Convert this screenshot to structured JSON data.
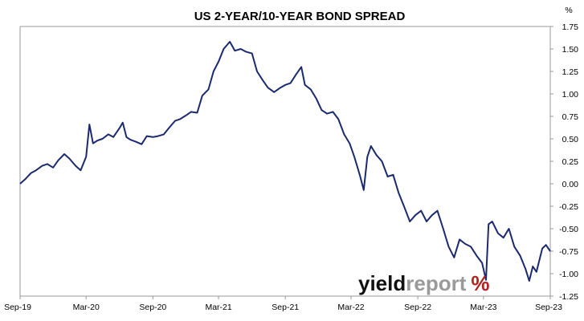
{
  "chart_data": {
    "type": "line",
    "title": "US 2-YEAR/10-YEAR BOND SPREAD",
    "ylabel": "%",
    "ylim": [
      -1.25,
      1.75
    ],
    "y_ticks": [
      "1.75",
      "1.50",
      "1.25",
      "1.00",
      "0.75",
      "0.50",
      "0.25",
      "0.00",
      "-0.25",
      "-0.50",
      "-0.75",
      "-1.00",
      "-1.25"
    ],
    "x_ticks": [
      {
        "label": "Sep-19",
        "date": "2019-09-01"
      },
      {
        "label": "Mar-20",
        "date": "2020-03-01"
      },
      {
        "label": "Sep-20",
        "date": "2020-09-01"
      },
      {
        "label": "Mar-21",
        "date": "2021-03-01"
      },
      {
        "label": "Sep-21",
        "date": "2021-09-01"
      },
      {
        "label": "Mar-22",
        "date": "2022-03-01"
      },
      {
        "label": "Sep-22",
        "date": "2022-09-01"
      },
      {
        "label": "Mar-23",
        "date": "2023-03-01"
      },
      {
        "label": "Sep-23",
        "date": "2023-09-01"
      }
    ],
    "xlim": [
      "2019-09-01",
      "2023-09-01"
    ],
    "grid": false,
    "series": [
      {
        "line_color": "#1a2a6c",
        "points": [
          [
            "2019-09-01",
            0.0
          ],
          [
            "2019-09-15",
            0.05
          ],
          [
            "2019-10-01",
            0.12
          ],
          [
            "2019-10-15",
            0.15
          ],
          [
            "2019-11-01",
            0.2
          ],
          [
            "2019-11-15",
            0.22
          ],
          [
            "2019-12-01",
            0.18
          ],
          [
            "2019-12-15",
            0.26
          ],
          [
            "2020-01-01",
            0.33
          ],
          [
            "2020-01-15",
            0.28
          ],
          [
            "2020-02-01",
            0.2
          ],
          [
            "2020-02-15",
            0.15
          ],
          [
            "2020-03-01",
            0.3
          ],
          [
            "2020-03-10",
            0.66
          ],
          [
            "2020-03-20",
            0.45
          ],
          [
            "2020-04-01",
            0.48
          ],
          [
            "2020-04-15",
            0.5
          ],
          [
            "2020-05-01",
            0.55
          ],
          [
            "2020-05-15",
            0.52
          ],
          [
            "2020-06-01",
            0.62
          ],
          [
            "2020-06-10",
            0.68
          ],
          [
            "2020-06-20",
            0.52
          ],
          [
            "2020-07-01",
            0.49
          ],
          [
            "2020-07-15",
            0.47
          ],
          [
            "2020-08-01",
            0.44
          ],
          [
            "2020-08-15",
            0.53
          ],
          [
            "2020-09-01",
            0.52
          ],
          [
            "2020-09-15",
            0.53
          ],
          [
            "2020-10-01",
            0.55
          ],
          [
            "2020-10-15",
            0.62
          ],
          [
            "2020-11-01",
            0.7
          ],
          [
            "2020-11-15",
            0.72
          ],
          [
            "2020-12-01",
            0.76
          ],
          [
            "2020-12-15",
            0.8
          ],
          [
            "2021-01-01",
            0.79
          ],
          [
            "2021-01-15",
            0.98
          ],
          [
            "2021-02-01",
            1.05
          ],
          [
            "2021-02-15",
            1.25
          ],
          [
            "2021-03-01",
            1.36
          ],
          [
            "2021-03-15",
            1.5
          ],
          [
            "2021-04-01",
            1.58
          ],
          [
            "2021-04-15",
            1.48
          ],
          [
            "2021-05-01",
            1.5
          ],
          [
            "2021-05-15",
            1.47
          ],
          [
            "2021-06-01",
            1.45
          ],
          [
            "2021-06-15",
            1.25
          ],
          [
            "2021-07-01",
            1.15
          ],
          [
            "2021-07-15",
            1.07
          ],
          [
            "2021-08-01",
            1.02
          ],
          [
            "2021-08-15",
            1.06
          ],
          [
            "2021-09-01",
            1.1
          ],
          [
            "2021-09-15",
            1.12
          ],
          [
            "2021-10-01",
            1.22
          ],
          [
            "2021-10-15",
            1.3
          ],
          [
            "2021-10-25",
            1.1
          ],
          [
            "2021-11-10",
            1.05
          ],
          [
            "2021-11-25",
            0.95
          ],
          [
            "2021-12-10",
            0.82
          ],
          [
            "2021-12-25",
            0.78
          ],
          [
            "2022-01-10",
            0.8
          ],
          [
            "2022-01-25",
            0.72
          ],
          [
            "2022-02-10",
            0.55
          ],
          [
            "2022-02-25",
            0.45
          ],
          [
            "2022-03-10",
            0.3
          ],
          [
            "2022-03-25",
            0.1
          ],
          [
            "2022-04-05",
            -0.07
          ],
          [
            "2022-04-15",
            0.3
          ],
          [
            "2022-04-25",
            0.42
          ],
          [
            "2022-05-10",
            0.32
          ],
          [
            "2022-05-25",
            0.25
          ],
          [
            "2022-06-10",
            0.08
          ],
          [
            "2022-06-25",
            0.1
          ],
          [
            "2022-07-10",
            -0.1
          ],
          [
            "2022-07-25",
            -0.25
          ],
          [
            "2022-08-10",
            -0.42
          ],
          [
            "2022-08-25",
            -0.35
          ],
          [
            "2022-09-10",
            -0.3
          ],
          [
            "2022-09-25",
            -0.42
          ],
          [
            "2022-10-10",
            -0.35
          ],
          [
            "2022-10-25",
            -0.3
          ],
          [
            "2022-11-10",
            -0.5
          ],
          [
            "2022-11-25",
            -0.7
          ],
          [
            "2022-12-10",
            -0.82
          ],
          [
            "2022-12-25",
            -0.62
          ],
          [
            "2023-01-10",
            -0.67
          ],
          [
            "2023-01-25",
            -0.7
          ],
          [
            "2023-02-10",
            -0.8
          ],
          [
            "2023-02-25",
            -0.88
          ],
          [
            "2023-03-08",
            -1.07
          ],
          [
            "2023-03-15",
            -0.45
          ],
          [
            "2023-03-25",
            -0.42
          ],
          [
            "2023-04-10",
            -0.55
          ],
          [
            "2023-04-25",
            -0.6
          ],
          [
            "2023-05-10",
            -0.5
          ],
          [
            "2023-05-25",
            -0.7
          ],
          [
            "2023-06-10",
            -0.8
          ],
          [
            "2023-06-25",
            -0.95
          ],
          [
            "2023-07-05",
            -1.08
          ],
          [
            "2023-07-15",
            -0.92
          ],
          [
            "2023-07-25",
            -0.98
          ],
          [
            "2023-08-10",
            -0.72
          ],
          [
            "2023-08-20",
            -0.68
          ],
          [
            "2023-09-01",
            -0.75
          ]
        ]
      }
    ]
  },
  "watermark": {
    "part1": "yield",
    "part2": "report",
    "symbol": "%",
    "color_part1": "#111111",
    "color_part2": "#9a9a9a",
    "color_symbol": "#b22222"
  }
}
